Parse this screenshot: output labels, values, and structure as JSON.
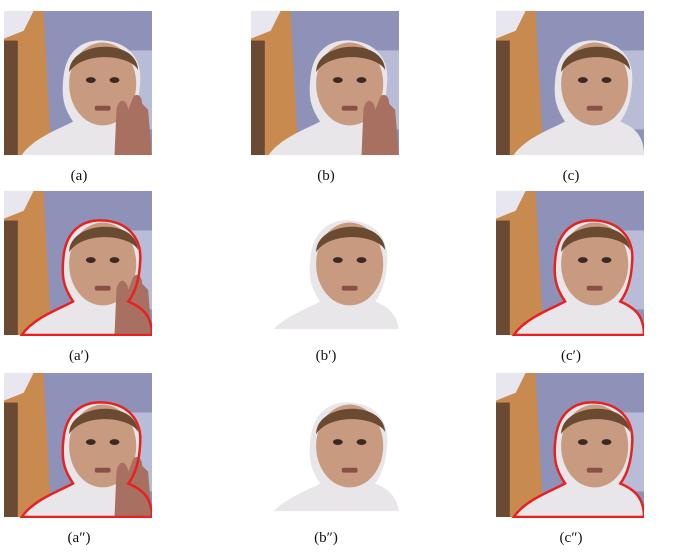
{
  "figure": {
    "panels": [
      {
        "caption": "(a)"
      },
      {
        "caption": "(b)"
      },
      {
        "caption": "(c)"
      },
      {
        "caption": "(a′)"
      },
      {
        "caption": "(b′)"
      },
      {
        "caption": "(c′)"
      },
      {
        "caption": "(a″)"
      },
      {
        "caption": "(b″)"
      },
      {
        "caption": "(c″)"
      }
    ]
  }
}
